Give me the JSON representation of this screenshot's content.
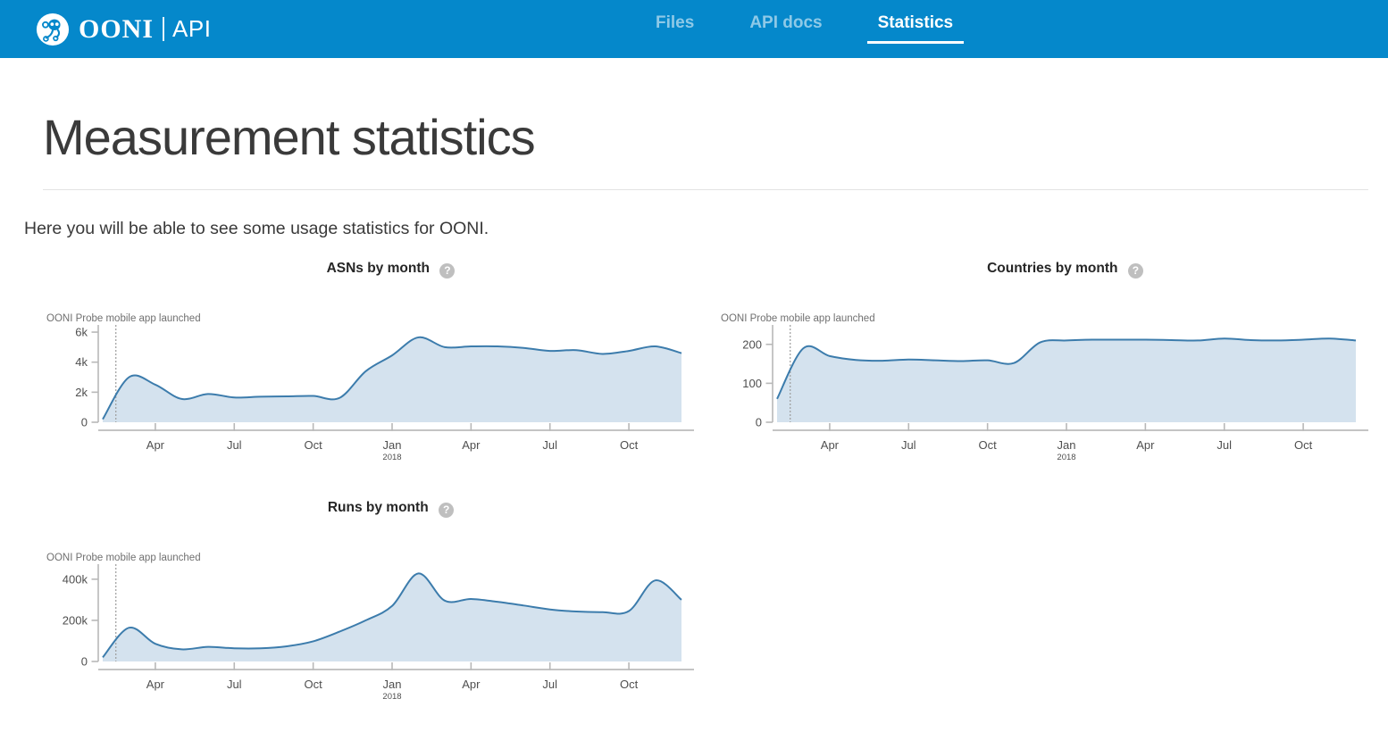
{
  "ui": {
    "help_glyph": "?"
  },
  "colors": {
    "header_background": "#0588CB",
    "chart_line": "#3C7CAC",
    "chart_fill": "#D4E2EE",
    "active_tab_underline": "#ffffff"
  },
  "header": {
    "brand": {
      "name": "OONI",
      "product": "API"
    },
    "nav": [
      {
        "label": "Files",
        "active": false
      },
      {
        "label": "API docs",
        "active": false
      },
      {
        "label": "Statistics",
        "active": true
      }
    ]
  },
  "page": {
    "title": "Measurement statistics",
    "intro": "Here you will be able to see some usage statistics for OONI."
  },
  "chart_data": [
    {
      "type": "area",
      "title": "ASNs by month",
      "annotation": {
        "label": "OONI Probe mobile app launched",
        "x_index": 0.5
      },
      "x": [
        "2017-02",
        "2017-03",
        "2017-04",
        "2017-05",
        "2017-06",
        "2017-07",
        "2017-08",
        "2017-09",
        "2017-10",
        "2017-11",
        "2017-12",
        "2018-01",
        "2018-02",
        "2018-03",
        "2018-04",
        "2018-05",
        "2018-06",
        "2018-07",
        "2018-08",
        "2018-09",
        "2018-10",
        "2018-11",
        "2018-12"
      ],
      "values": [
        200,
        3000,
        2500,
        1550,
        1880,
        1650,
        1700,
        1720,
        1750,
        1620,
        3400,
        4450,
        5650,
        5000,
        5050,
        5050,
        4950,
        4750,
        4800,
        4550,
        4750,
        5050,
        4600
      ],
      "ylim": [
        0,
        6300
      ],
      "y_ticks": [
        {
          "label": "0",
          "value": 0
        },
        {
          "label": "2k",
          "value": 2000
        },
        {
          "label": "4k",
          "value": 4000
        },
        {
          "label": "6k",
          "value": 6000
        }
      ],
      "x_ticks": [
        {
          "label": "Apr",
          "index": 2
        },
        {
          "label": "Jul",
          "index": 5
        },
        {
          "label": "Oct",
          "index": 8
        },
        {
          "label": "Jan",
          "sub": "2018",
          "index": 11
        },
        {
          "label": "Apr",
          "index": 14
        },
        {
          "label": "Jul",
          "index": 17
        },
        {
          "label": "Oct",
          "index": 20
        }
      ],
      "grid": false,
      "legend": null
    },
    {
      "type": "area",
      "title": "Countries by month",
      "annotation": {
        "label": "OONI Probe mobile app launched",
        "x_index": 0.5
      },
      "x": [
        "2017-02",
        "2017-03",
        "2017-04",
        "2017-05",
        "2017-06",
        "2017-07",
        "2017-08",
        "2017-09",
        "2017-10",
        "2017-11",
        "2017-12",
        "2018-01",
        "2018-02",
        "2018-03",
        "2018-04",
        "2018-05",
        "2018-06",
        "2018-07",
        "2018-08",
        "2018-09",
        "2018-10",
        "2018-11",
        "2018-12"
      ],
      "values": [
        60,
        190,
        170,
        160,
        158,
        161,
        159,
        157,
        159,
        152,
        205,
        210,
        212,
        212,
        212,
        211,
        210,
        215,
        211,
        210,
        212,
        215,
        210
      ],
      "ylim": [
        0,
        243
      ],
      "y_ticks": [
        {
          "label": "0",
          "value": 0
        },
        {
          "label": "100",
          "value": 100
        },
        {
          "label": "200",
          "value": 200
        }
      ],
      "x_ticks": [
        {
          "label": "Apr",
          "index": 2
        },
        {
          "label": "Jul",
          "index": 5
        },
        {
          "label": "Oct",
          "index": 8
        },
        {
          "label": "Jan",
          "sub": "2018",
          "index": 11
        },
        {
          "label": "Apr",
          "index": 14
        },
        {
          "label": "Jul",
          "index": 17
        },
        {
          "label": "Oct",
          "index": 20
        }
      ],
      "grid": false,
      "legend": null
    },
    {
      "type": "area",
      "title": "Runs by month",
      "annotation": {
        "label": "OONI Probe mobile app launched",
        "x_index": 0.5
      },
      "x": [
        "2017-02",
        "2017-03",
        "2017-04",
        "2017-05",
        "2017-06",
        "2017-07",
        "2017-08",
        "2017-09",
        "2017-10",
        "2017-11",
        "2017-12",
        "2018-01",
        "2018-02",
        "2018-03",
        "2018-04",
        "2018-05",
        "2018-06",
        "2018-07",
        "2018-08",
        "2018-09",
        "2018-10",
        "2018-11",
        "2018-12"
      ],
      "values": [
        20000,
        164000,
        86000,
        59000,
        71000,
        64000,
        64000,
        74000,
        98000,
        145000,
        200000,
        270000,
        428000,
        296000,
        304000,
        290000,
        272000,
        253000,
        243000,
        240000,
        245000,
        394000,
        300000
      ],
      "ylim": [
        0,
        460000
      ],
      "y_ticks": [
        {
          "label": "0",
          "value": 0
        },
        {
          "label": "200k",
          "value": 200000
        },
        {
          "label": "400k",
          "value": 400000
        }
      ],
      "x_ticks": [
        {
          "label": "Apr",
          "index": 2
        },
        {
          "label": "Jul",
          "index": 5
        },
        {
          "label": "Oct",
          "index": 8
        },
        {
          "label": "Jan",
          "sub": "2018",
          "index": 11
        },
        {
          "label": "Apr",
          "index": 14
        },
        {
          "label": "Jul",
          "index": 17
        },
        {
          "label": "Oct",
          "index": 20
        }
      ],
      "grid": false,
      "legend": null
    }
  ]
}
